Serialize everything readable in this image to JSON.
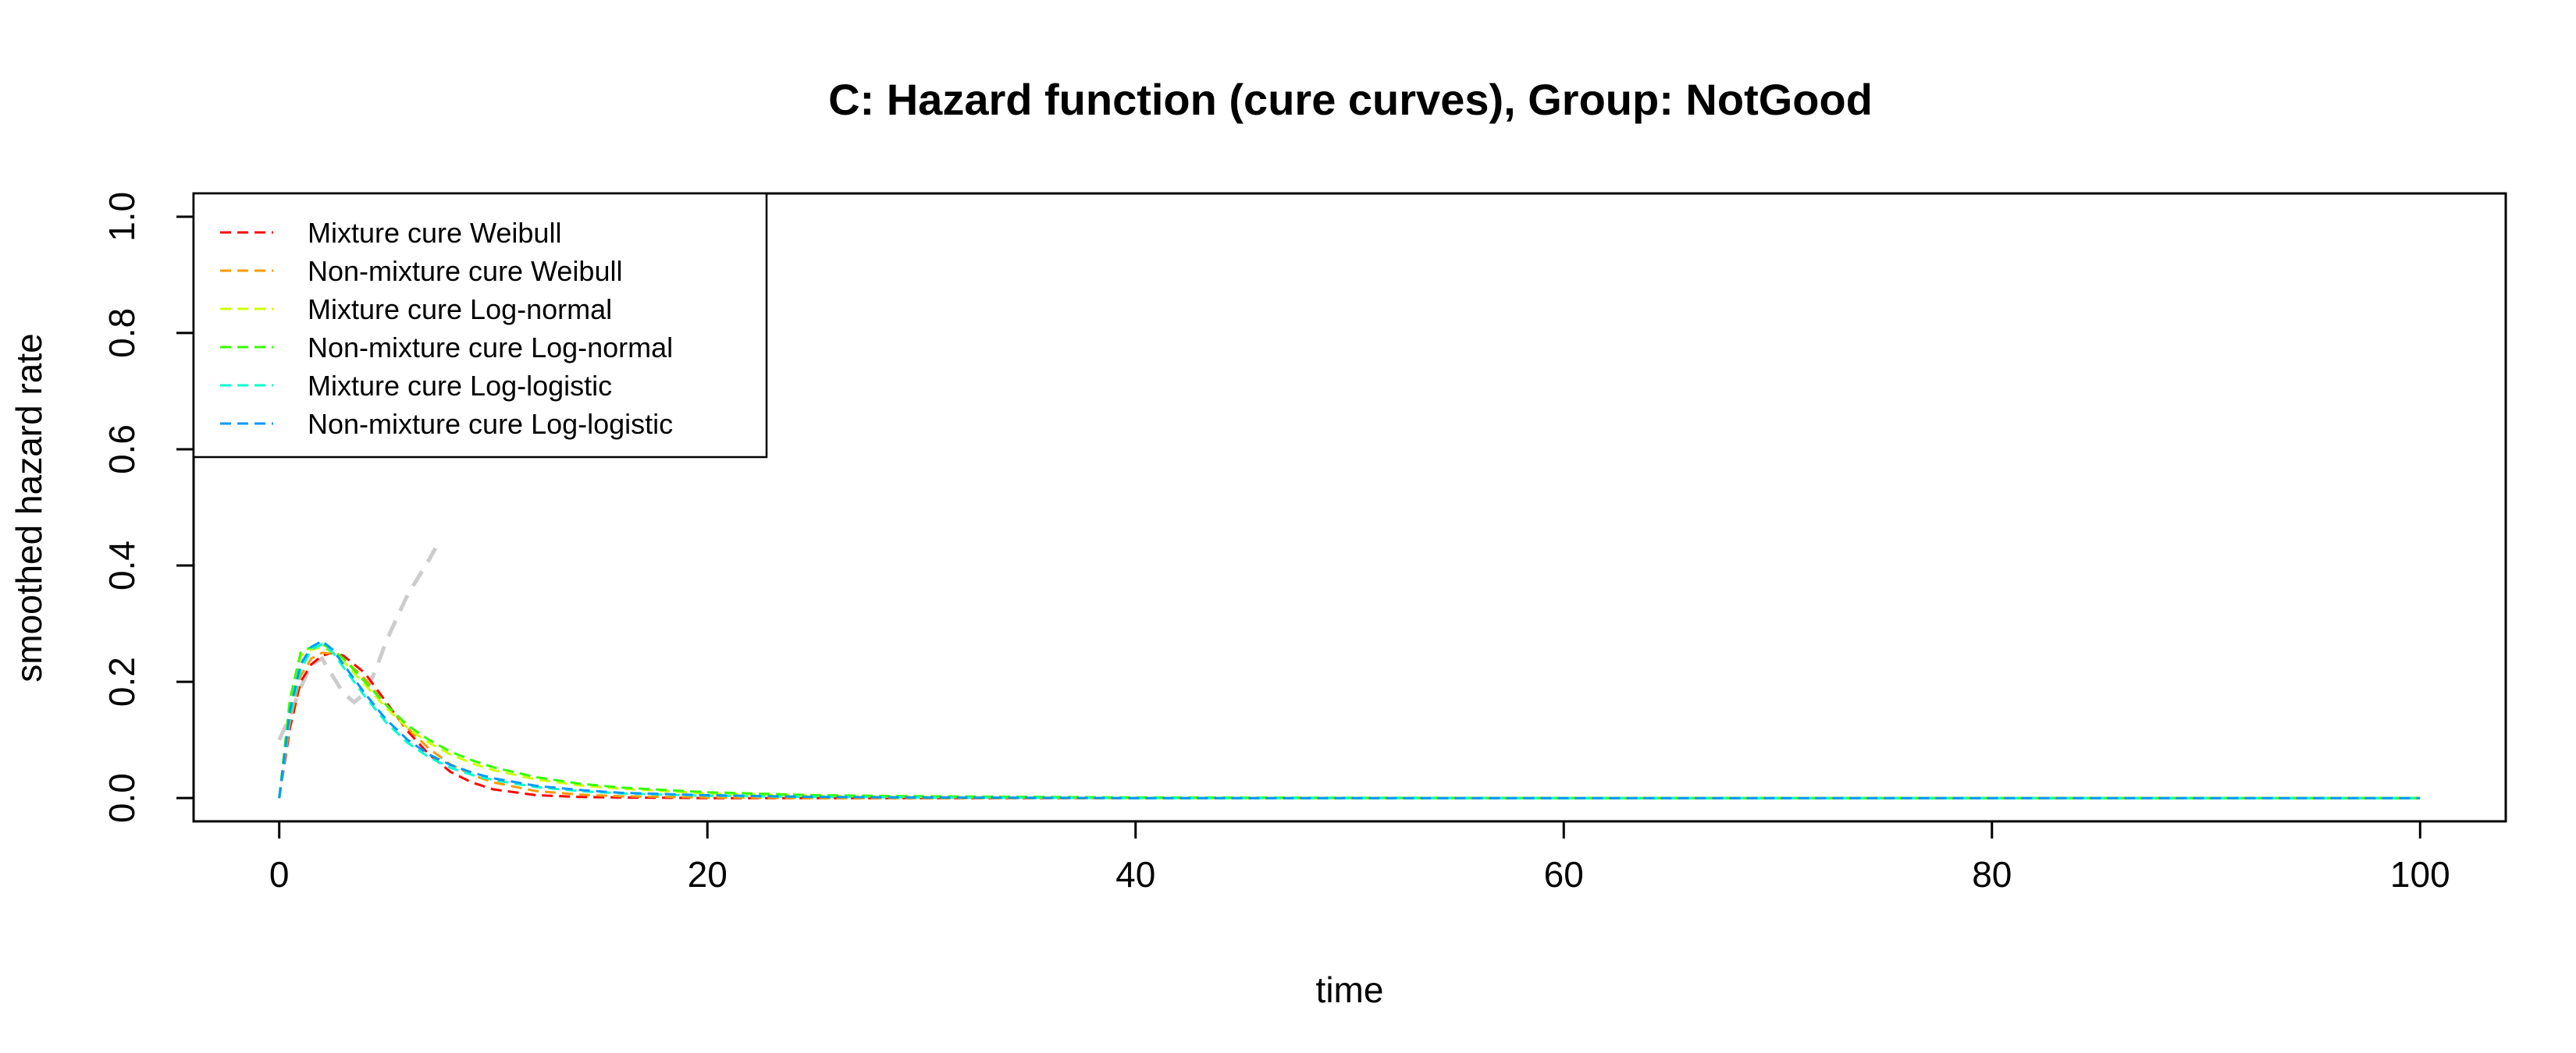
{
  "chart_data": {
    "type": "line",
    "title": "C: Hazard function (cure curves), Group: NotGood",
    "xlabel": "time",
    "ylabel": "smoothed hazard rate",
    "xlim": [
      -4,
      104
    ],
    "ylim": [
      -0.04,
      1.04
    ],
    "x_ticks": [
      0,
      20,
      40,
      60,
      80,
      100
    ],
    "y_ticks": [
      0.0,
      0.2,
      0.4,
      0.6,
      0.8,
      1.0
    ],
    "x_tick_labels": [
      "0",
      "20",
      "40",
      "60",
      "80",
      "100"
    ],
    "y_tick_labels": [
      "0.0",
      "0.2",
      "0.4",
      "0.6",
      "0.8",
      "1.0"
    ],
    "grid": false,
    "legend_position": "top-left",
    "observed": {
      "color": "#cccccc",
      "style": "dashed",
      "x": [
        0,
        0.5,
        1,
        1.5,
        2,
        2.5,
        3,
        3.5,
        4,
        4.5,
        5,
        5.5,
        6,
        6.5,
        7,
        7.3
      ],
      "y": [
        0.1,
        0.14,
        0.19,
        0.23,
        0.24,
        0.21,
        0.18,
        0.165,
        0.18,
        0.22,
        0.27,
        0.31,
        0.35,
        0.38,
        0.41,
        0.43
      ]
    },
    "series": [
      {
        "name": "Mixture cure Weibull",
        "color": "#ff0000",
        "x": [
          0,
          0.5,
          1,
          1.5,
          2,
          2.5,
          3,
          4,
          5,
          6,
          7,
          8,
          9,
          10,
          12,
          14,
          16,
          20,
          25,
          30,
          40,
          60,
          80,
          100
        ],
        "y": [
          0.0,
          0.12,
          0.2,
          0.23,
          0.245,
          0.25,
          0.245,
          0.215,
          0.165,
          0.115,
          0.075,
          0.045,
          0.027,
          0.015,
          0.005,
          0.002,
          0.001,
          0.0,
          0.0,
          0.0,
          0.0,
          0.0,
          0.0,
          0.0
        ]
      },
      {
        "name": "Non-mixture cure Weibull",
        "color": "#ff9900",
        "x": [
          0,
          0.5,
          1,
          1.5,
          2,
          2.5,
          3,
          4,
          5,
          6,
          7,
          8,
          9,
          10,
          12,
          14,
          16,
          20,
          25,
          30,
          40,
          60,
          80,
          100
        ],
        "y": [
          0.0,
          0.13,
          0.21,
          0.24,
          0.25,
          0.248,
          0.24,
          0.205,
          0.16,
          0.12,
          0.085,
          0.058,
          0.04,
          0.027,
          0.012,
          0.006,
          0.003,
          0.001,
          0.0,
          0.0,
          0.0,
          0.0,
          0.0,
          0.0
        ]
      },
      {
        "name": "Mixture cure Log-normal",
        "color": "#ccff00",
        "x": [
          0,
          0.5,
          1,
          1.5,
          2,
          2.5,
          3,
          4,
          5,
          6,
          7,
          8,
          9,
          10,
          12,
          14,
          16,
          20,
          25,
          30,
          40,
          60,
          80,
          100
        ],
        "y": [
          0.0,
          0.16,
          0.245,
          0.255,
          0.26,
          0.25,
          0.235,
          0.195,
          0.155,
          0.12,
          0.095,
          0.075,
          0.06,
          0.048,
          0.032,
          0.022,
          0.016,
          0.008,
          0.004,
          0.002,
          0.0,
          0.0,
          0.0,
          0.0
        ]
      },
      {
        "name": "Non-mixture cure Log-normal",
        "color": "#33ff00",
        "x": [
          0,
          0.5,
          1,
          1.5,
          2,
          2.5,
          3,
          4,
          5,
          6,
          7,
          8,
          9,
          10,
          12,
          14,
          16,
          20,
          25,
          30,
          40,
          60,
          80,
          100
        ],
        "y": [
          0.0,
          0.17,
          0.25,
          0.26,
          0.265,
          0.255,
          0.24,
          0.2,
          0.16,
          0.125,
          0.1,
          0.08,
          0.065,
          0.053,
          0.036,
          0.025,
          0.018,
          0.01,
          0.005,
          0.003,
          0.001,
          0.0,
          0.0,
          0.0
        ]
      },
      {
        "name": "Mixture cure Log-logistic",
        "color": "#00ffcc",
        "x": [
          0,
          0.5,
          1,
          1.5,
          2,
          2.5,
          3,
          4,
          5,
          6,
          7,
          8,
          9,
          10,
          12,
          14,
          16,
          20,
          25,
          30,
          40,
          60,
          80,
          100
        ],
        "y": [
          0.0,
          0.14,
          0.22,
          0.255,
          0.265,
          0.25,
          0.225,
          0.175,
          0.13,
          0.095,
          0.07,
          0.052,
          0.04,
          0.031,
          0.019,
          0.012,
          0.008,
          0.004,
          0.002,
          0.001,
          0.0,
          0.0,
          0.0,
          0.0
        ]
      },
      {
        "name": "Non-mixture cure Log-logistic",
        "color": "#0099ff",
        "x": [
          0,
          0.5,
          1,
          1.5,
          2,
          2.5,
          3,
          4,
          5,
          6,
          7,
          8,
          9,
          10,
          12,
          14,
          16,
          20,
          25,
          30,
          40,
          60,
          80,
          100
        ],
        "y": [
          0.0,
          0.15,
          0.23,
          0.26,
          0.27,
          0.255,
          0.23,
          0.18,
          0.135,
          0.1,
          0.075,
          0.057,
          0.044,
          0.034,
          0.021,
          0.014,
          0.009,
          0.005,
          0.002,
          0.001,
          0.0,
          0.0,
          0.0,
          0.0
        ]
      }
    ]
  }
}
